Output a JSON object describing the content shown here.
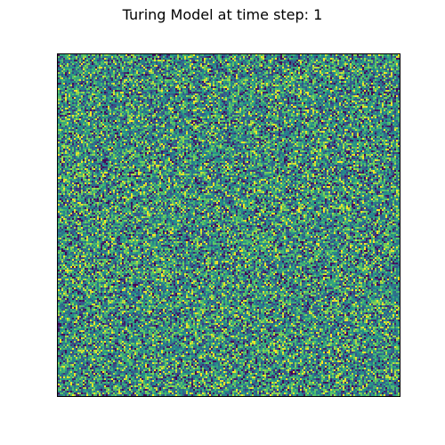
{
  "chart_data": {
    "type": "heatmap",
    "title": "Turing Model at time step: 1",
    "xlabel": "",
    "ylabel": "",
    "axes_visible": false,
    "grid": false,
    "legend": "none",
    "colormap": "viridis",
    "colors": {
      "low": "#440154",
      "mid_low": "#3b528b",
      "mid": "#21918c",
      "mid_high": "#5ec962",
      "high": "#fde725",
      "frame": "#000000",
      "background": "#ffffff"
    },
    "pattern": "uniform random noise",
    "grid_size": 192
  }
}
